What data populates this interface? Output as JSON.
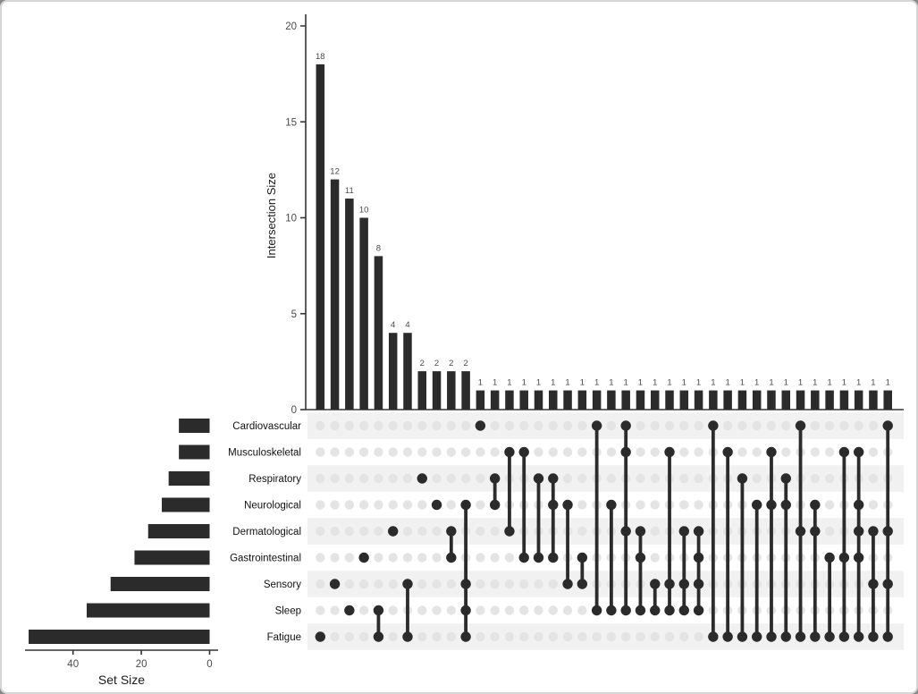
{
  "figure": {
    "background": "#ffffff",
    "border_color": "#d6d6d6"
  },
  "colors": {
    "bar": "#2b2b2b",
    "dot_inactive": "#e4e4e4",
    "stripe": "#f1f1f1",
    "axis_line": "#333333",
    "tick_text": "#4a4a4a",
    "value_label_text": "#4a4a4a",
    "row_label_text": "#111111"
  },
  "chart_data": {
    "type": "upset",
    "title": "",
    "intersection_axis": {
      "label": "Intersection Size",
      "ticks": [
        0,
        5,
        10,
        15,
        20
      ],
      "max": 20
    },
    "set_axis": {
      "label": "Set Size",
      "ticks": [
        40,
        20,
        0
      ],
      "max_extent": 55
    },
    "sets": [
      {
        "name": "Cardiovascular",
        "size": 9
      },
      {
        "name": "Musculoskeletal",
        "size": 9
      },
      {
        "name": "Respiratory",
        "size": 12
      },
      {
        "name": "Neurological",
        "size": 14
      },
      {
        "name": "Dermatological",
        "size": 18
      },
      {
        "name": "Gastrointestinal",
        "size": 22
      },
      {
        "name": "Sensory",
        "size": 29
      },
      {
        "name": "Sleep",
        "size": 36
      },
      {
        "name": "Fatigue",
        "size": 53
      }
    ],
    "intersections": [
      {
        "size": 18,
        "sets": [
          "Fatigue"
        ]
      },
      {
        "size": 12,
        "sets": [
          "Sensory"
        ]
      },
      {
        "size": 11,
        "sets": [
          "Sleep"
        ]
      },
      {
        "size": 10,
        "sets": [
          "Gastrointestinal"
        ]
      },
      {
        "size": 8,
        "sets": [
          "Sleep",
          "Fatigue"
        ]
      },
      {
        "size": 4,
        "sets": [
          "Dermatological"
        ]
      },
      {
        "size": 4,
        "sets": [
          "Sensory",
          "Fatigue"
        ]
      },
      {
        "size": 2,
        "sets": [
          "Respiratory"
        ]
      },
      {
        "size": 2,
        "sets": [
          "Neurological"
        ]
      },
      {
        "size": 2,
        "sets": [
          "Dermatological",
          "Gastrointestinal"
        ]
      },
      {
        "size": 2,
        "sets": [
          "Neurological",
          "Sensory",
          "Sleep",
          "Fatigue"
        ]
      },
      {
        "size": 1,
        "sets": [
          "Cardiovascular"
        ]
      },
      {
        "size": 1,
        "sets": [
          "Respiratory",
          "Neurological"
        ]
      },
      {
        "size": 1,
        "sets": [
          "Musculoskeletal",
          "Dermatological"
        ]
      },
      {
        "size": 1,
        "sets": [
          "Musculoskeletal",
          "Gastrointestinal"
        ]
      },
      {
        "size": 1,
        "sets": [
          "Respiratory",
          "Gastrointestinal"
        ]
      },
      {
        "size": 1,
        "sets": [
          "Respiratory",
          "Neurological",
          "Gastrointestinal"
        ]
      },
      {
        "size": 1,
        "sets": [
          "Neurological",
          "Sensory"
        ]
      },
      {
        "size": 1,
        "sets": [
          "Gastrointestinal",
          "Sensory"
        ]
      },
      {
        "size": 1,
        "sets": [
          "Cardiovascular",
          "Sleep"
        ]
      },
      {
        "size": 1,
        "sets": [
          "Neurological",
          "Sleep"
        ]
      },
      {
        "size": 1,
        "sets": [
          "Cardiovascular",
          "Musculoskeletal",
          "Dermatological",
          "Sleep"
        ]
      },
      {
        "size": 1,
        "sets": [
          "Dermatological",
          "Gastrointestinal",
          "Sleep"
        ]
      },
      {
        "size": 1,
        "sets": [
          "Sensory",
          "Sleep"
        ]
      },
      {
        "size": 1,
        "sets": [
          "Musculoskeletal",
          "Sensory",
          "Sleep"
        ]
      },
      {
        "size": 1,
        "sets": [
          "Dermatological",
          "Sensory",
          "Sleep"
        ]
      },
      {
        "size": 1,
        "sets": [
          "Dermatological",
          "Gastrointestinal",
          "Sensory",
          "Sleep"
        ]
      },
      {
        "size": 1,
        "sets": [
          "Cardiovascular",
          "Fatigue"
        ]
      },
      {
        "size": 1,
        "sets": [
          "Musculoskeletal",
          "Fatigue"
        ]
      },
      {
        "size": 1,
        "sets": [
          "Respiratory",
          "Fatigue"
        ]
      },
      {
        "size": 1,
        "sets": [
          "Neurological",
          "Fatigue"
        ]
      },
      {
        "size": 1,
        "sets": [
          "Musculoskeletal",
          "Neurological",
          "Fatigue"
        ]
      },
      {
        "size": 1,
        "sets": [
          "Respiratory",
          "Neurological",
          "Fatigue"
        ]
      },
      {
        "size": 1,
        "sets": [
          "Cardiovascular",
          "Dermatological",
          "Fatigue"
        ]
      },
      {
        "size": 1,
        "sets": [
          "Neurological",
          "Dermatological",
          "Fatigue"
        ]
      },
      {
        "size": 1,
        "sets": [
          "Gastrointestinal",
          "Fatigue"
        ]
      },
      {
        "size": 1,
        "sets": [
          "Musculoskeletal",
          "Gastrointestinal",
          "Fatigue"
        ]
      },
      {
        "size": 1,
        "sets": [
          "Musculoskeletal",
          "Neurological",
          "Dermatological",
          "Gastrointestinal",
          "Fatigue"
        ]
      },
      {
        "size": 1,
        "sets": [
          "Dermatological",
          "Sensory",
          "Fatigue"
        ]
      },
      {
        "size": 1,
        "sets": [
          "Cardiovascular",
          "Dermatological",
          "Sensory",
          "Fatigue"
        ]
      }
    ]
  }
}
